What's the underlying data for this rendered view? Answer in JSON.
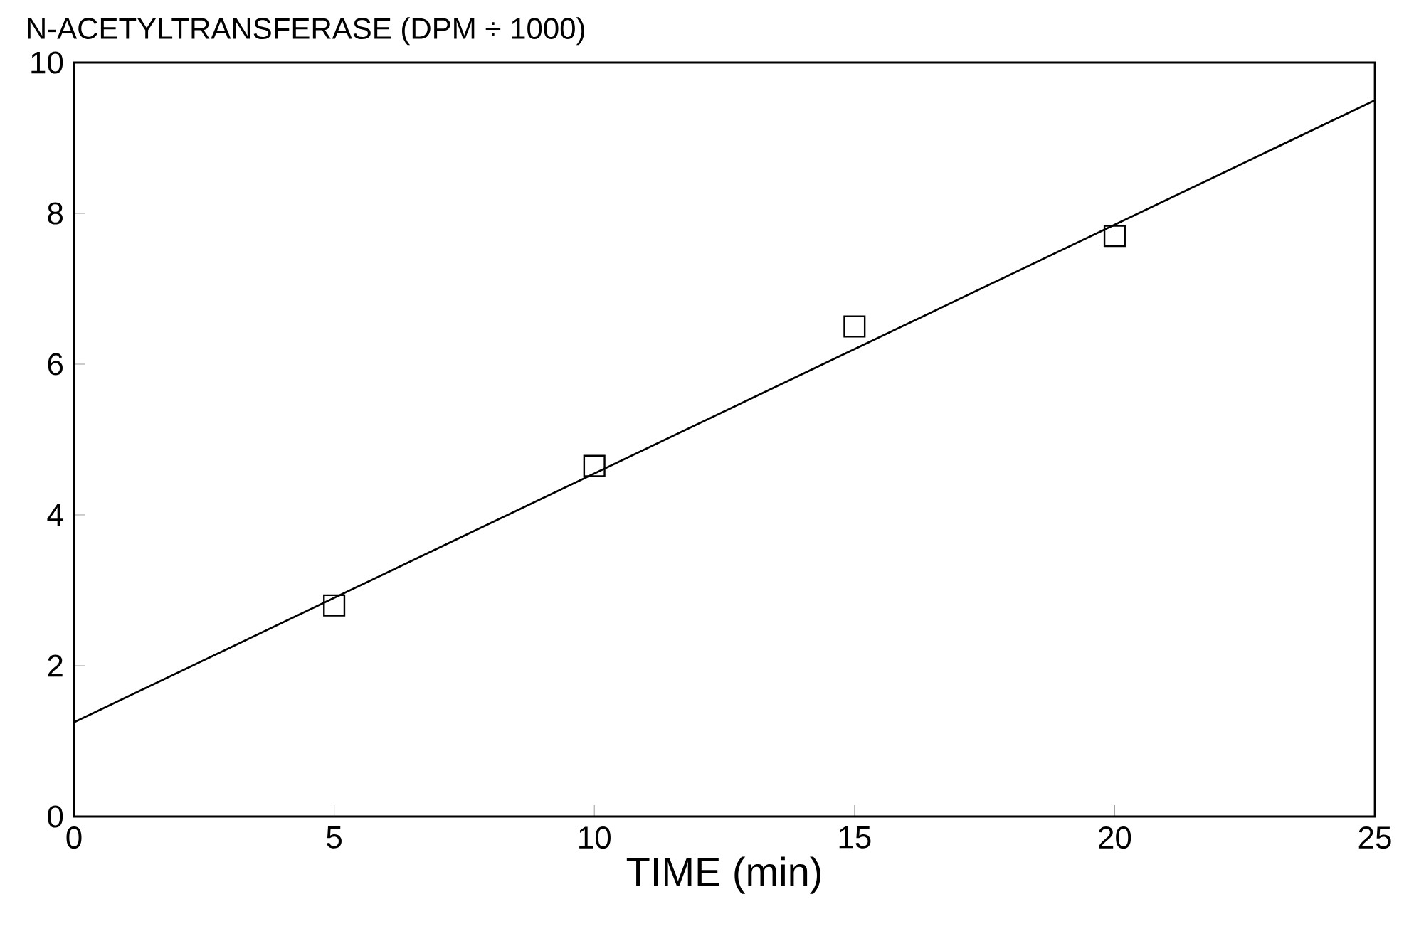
{
  "chart_data": {
    "type": "scatter",
    "xlabel": "TIME (min)",
    "ylabel": "N-ACETYLTRANSFERASE (DPM ÷ 1000)",
    "xlim": [
      0,
      25
    ],
    "ylim": [
      0,
      10
    ],
    "xticks": [
      0,
      5,
      10,
      15,
      20,
      25
    ],
    "yticks": [
      0,
      2,
      4,
      6,
      8,
      10
    ],
    "grid": false,
    "marker": "square",
    "series": [
      {
        "color": "#000000",
        "x": [
          5,
          10,
          15,
          20
        ],
        "values": [
          2.8,
          4.65,
          6.5,
          7.7
        ]
      },
      {
        "type": "line",
        "color": "#000000",
        "marker": "none",
        "x": [
          0,
          25
        ],
        "values": [
          1.25,
          9.5
        ]
      }
    ]
  }
}
